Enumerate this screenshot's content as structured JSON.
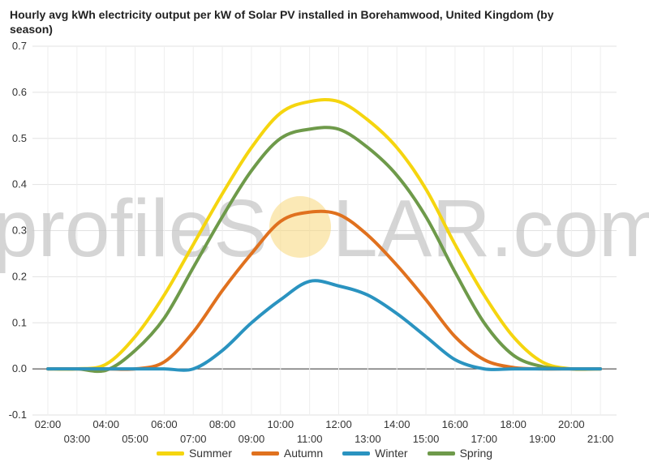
{
  "watermark": {
    "text_left": "profileS",
    "text_right": "LAR.com",
    "text_color": "#c8c8c8",
    "sun_color": "#f7d77a"
  },
  "chart_data": {
    "type": "line",
    "title": "Hourly avg kWh electricity output per kW of Solar PV installed in Borehamwood, United Kingdom (by season)",
    "xlabel": "",
    "ylabel": "",
    "ylim": [
      -0.1,
      0.7
    ],
    "yticks": [
      "-0.1",
      "0.0",
      "0.1",
      "0.2",
      "0.3",
      "0.4",
      "0.5",
      "0.6",
      "0.7"
    ],
    "xticks": [
      "02:00",
      "03:00",
      "04:00",
      "05:00",
      "06:00",
      "07:00",
      "08:00",
      "09:00",
      "10:00",
      "11:00",
      "12:00",
      "13:00",
      "14:00",
      "15:00",
      "16:00",
      "17:00",
      "18:00",
      "19:00",
      "20:00",
      "21:00"
    ],
    "x": [
      2,
      3,
      4,
      5,
      6,
      7,
      8,
      9,
      10,
      11,
      12,
      13,
      14,
      15,
      16,
      17,
      18,
      19,
      20,
      21
    ],
    "grid": true,
    "legend_position": "bottom",
    "series": [
      {
        "name": "Summer",
        "color": "#f5d50f",
        "values": [
          0.0,
          0.0,
          0.01,
          0.07,
          0.16,
          0.27,
          0.38,
          0.48,
          0.555,
          0.58,
          0.58,
          0.54,
          0.48,
          0.39,
          0.27,
          0.16,
          0.07,
          0.015,
          0.0,
          0.0
        ]
      },
      {
        "name": "Autumn",
        "color": "#e0711e",
        "values": [
          0.0,
          0.0,
          0.0,
          0.0,
          0.015,
          0.08,
          0.17,
          0.25,
          0.32,
          0.34,
          0.335,
          0.29,
          0.225,
          0.15,
          0.07,
          0.02,
          0.003,
          0.0,
          0.0,
          0.0
        ]
      },
      {
        "name": "Winter",
        "color": "#2a93c0",
        "values": [
          0.0,
          0.0,
          0.0,
          0.0,
          0.0,
          0.0,
          0.04,
          0.1,
          0.15,
          0.19,
          0.18,
          0.16,
          0.12,
          0.07,
          0.02,
          0.0,
          0.0,
          0.0,
          0.0,
          0.0
        ]
      },
      {
        "name": "Spring",
        "color": "#6e9a4a",
        "values": [
          0.0,
          0.0,
          -0.003,
          0.04,
          0.11,
          0.22,
          0.33,
          0.43,
          0.5,
          0.52,
          0.52,
          0.48,
          0.42,
          0.33,
          0.21,
          0.1,
          0.03,
          0.005,
          0.0,
          0.0
        ]
      }
    ]
  }
}
